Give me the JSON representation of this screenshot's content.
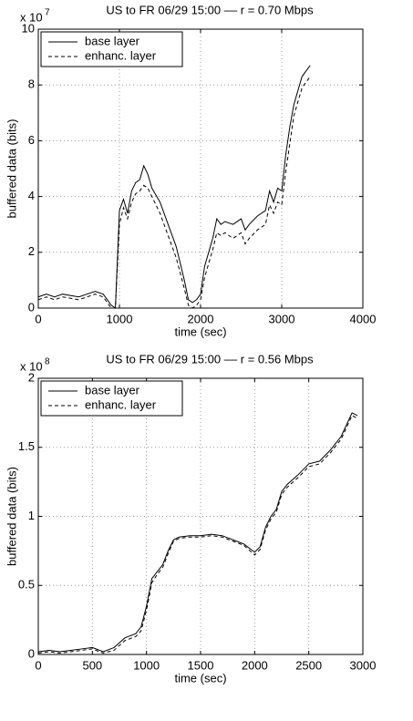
{
  "chart_data": [
    {
      "type": "line",
      "title": "US to FR 06/29 15:00 –– r = 0.70 Mbps",
      "x_label": "time (sec)",
      "y_label": "buffered data (bits)",
      "y_scale_label": "x 10",
      "y_scale_exponent": "7",
      "xlim": [
        0,
        4000
      ],
      "xticks": [
        0,
        1000,
        2000,
        3000,
        4000
      ],
      "ylim": [
        0,
        10
      ],
      "yticks": [
        0,
        2,
        4,
        6,
        8,
        10
      ],
      "grid": true,
      "legend": "upper left",
      "x": [
        0,
        100,
        200,
        300,
        400,
        500,
        600,
        700,
        800,
        900,
        950,
        1000,
        1050,
        1100,
        1150,
        1200,
        1250,
        1300,
        1350,
        1400,
        1500,
        1600,
        1700,
        1800,
        1850,
        1900,
        1950,
        2000,
        2050,
        2100,
        2150,
        2200,
        2250,
        2300,
        2400,
        2500,
        2550,
        2600,
        2700,
        2800,
        2850,
        2900,
        2950,
        3000,
        3050,
        3100,
        3150,
        3200,
        3250,
        3300,
        3350
      ],
      "series": [
        {
          "name": "base layer",
          "color": "#000000",
          "line_style": "solid",
          "values": [
            0.4,
            0.5,
            0.4,
            0.5,
            0.45,
            0.4,
            0.5,
            0.6,
            0.5,
            0.1,
            0.0,
            3.5,
            3.9,
            3.4,
            4.2,
            4.5,
            4.6,
            5.1,
            4.8,
            4.3,
            3.8,
            3.0,
            2.2,
            1.0,
            0.3,
            0.2,
            0.3,
            0.5,
            1.5,
            2.0,
            2.5,
            3.2,
            3.0,
            3.1,
            3.0,
            3.2,
            2.8,
            3.0,
            3.3,
            3.5,
            4.2,
            3.8,
            4.3,
            4.2,
            5.5,
            6.5,
            7.3,
            7.8,
            8.3,
            8.5,
            8.7
          ]
        },
        {
          "name": "enhanc. layer",
          "color": "#000000",
          "line_style": "dashed",
          "values": [
            0.3,
            0.4,
            0.3,
            0.4,
            0.35,
            0.3,
            0.4,
            0.5,
            0.4,
            0.0,
            0.0,
            3.0,
            3.6,
            3.2,
            3.8,
            4.1,
            4.2,
            4.4,
            4.3,
            4.0,
            3.4,
            2.6,
            1.8,
            0.7,
            0.1,
            0.0,
            0.1,
            0.3,
            1.1,
            1.6,
            2.1,
            2.7,
            2.6,
            2.7,
            2.5,
            2.7,
            2.3,
            2.5,
            2.8,
            3.0,
            3.7,
            3.4,
            3.8,
            3.7,
            4.9,
            5.9,
            6.9,
            7.4,
            7.9,
            8.1,
            8.3
          ]
        }
      ]
    },
    {
      "type": "line",
      "title": "US to FR 06/29 15:00 –– r = 0.56 Mbps",
      "x_label": "time (sec)",
      "y_label": "buffered data (bits)",
      "y_scale_label": "x 10",
      "y_scale_exponent": "8",
      "xlim": [
        0,
        3000
      ],
      "xticks": [
        0,
        500,
        1000,
        1500,
        2000,
        2500,
        3000
      ],
      "ylim": [
        0,
        2
      ],
      "yticks": [
        0,
        0.5,
        1,
        1.5,
        2
      ],
      "grid": true,
      "legend": "upper left",
      "x": [
        0,
        100,
        200,
        300,
        400,
        500,
        600,
        700,
        800,
        900,
        950,
        1000,
        1050,
        1100,
        1150,
        1200,
        1250,
        1300,
        1400,
        1500,
        1600,
        1700,
        1800,
        1900,
        2000,
        2050,
        2100,
        2150,
        2200,
        2250,
        2300,
        2400,
        2500,
        2600,
        2700,
        2800,
        2900,
        2950
      ],
      "series": [
        {
          "name": "base layer",
          "color": "#000000",
          "line_style": "solid",
          "values": [
            0.02,
            0.03,
            0.02,
            0.03,
            0.04,
            0.05,
            0.02,
            0.05,
            0.12,
            0.15,
            0.2,
            0.35,
            0.55,
            0.6,
            0.65,
            0.75,
            0.83,
            0.85,
            0.86,
            0.86,
            0.87,
            0.86,
            0.83,
            0.8,
            0.74,
            0.78,
            0.92,
            1.0,
            1.05,
            1.18,
            1.23,
            1.3,
            1.38,
            1.4,
            1.48,
            1.58,
            1.75,
            1.73
          ]
        },
        {
          "name": "enhanc. layer",
          "color": "#000000",
          "line_style": "dashed",
          "values": [
            0.01,
            0.02,
            0.01,
            0.02,
            0.03,
            0.04,
            0.01,
            0.03,
            0.1,
            0.13,
            0.17,
            0.32,
            0.52,
            0.58,
            0.63,
            0.73,
            0.82,
            0.84,
            0.85,
            0.85,
            0.86,
            0.85,
            0.82,
            0.79,
            0.72,
            0.76,
            0.9,
            0.98,
            1.03,
            1.16,
            1.21,
            1.28,
            1.36,
            1.38,
            1.46,
            1.56,
            1.73,
            1.71
          ]
        }
      ]
    }
  ]
}
